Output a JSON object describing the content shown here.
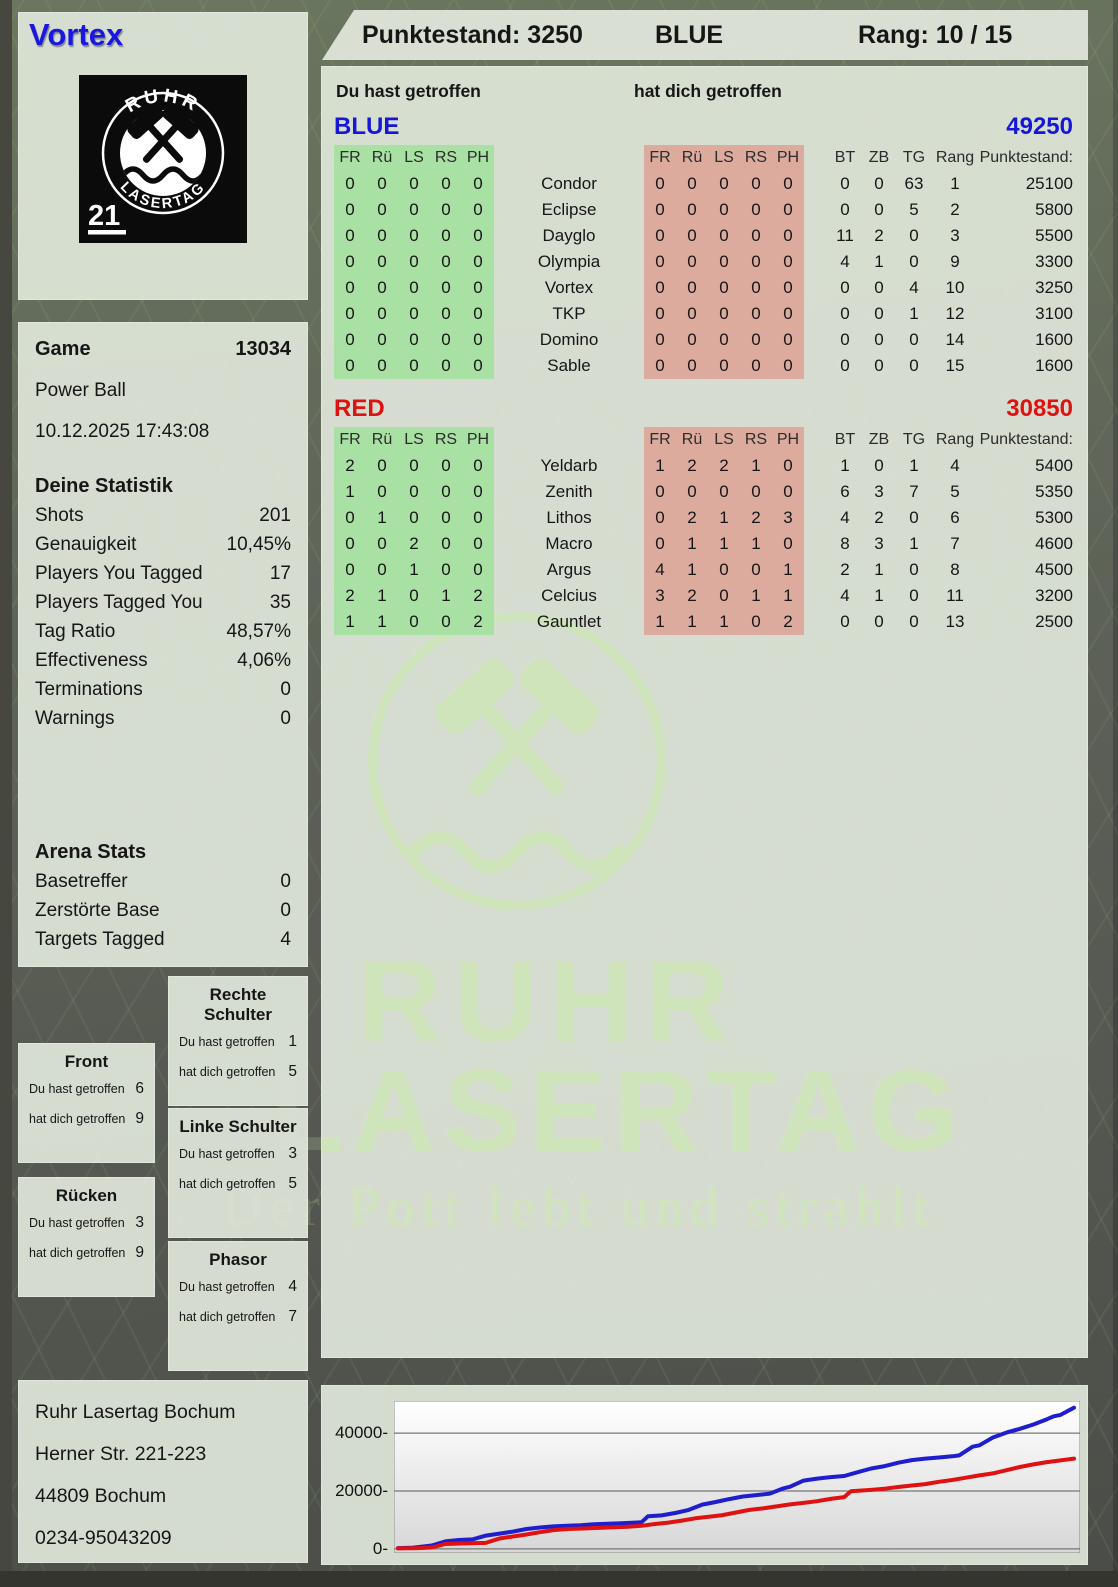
{
  "header": {
    "player_name": "Vortex",
    "score_label": "Punktestand: 3250",
    "team_label": "BLUE",
    "rank_label": "Rang: 10 / 15"
  },
  "logo": {
    "arc_top": "RUHR",
    "arc_bottom": "LASERTAG",
    "badge": "21"
  },
  "game": {
    "label": "Game",
    "number": "13034",
    "mode": "Power Ball",
    "datetime": "10.12.2025 17:43:08"
  },
  "stats": {
    "heading": "Deine Statistik",
    "rows": [
      {
        "label": "Shots",
        "value": "201"
      },
      {
        "label": "Genauigkeit",
        "value": "10,45%"
      },
      {
        "label": "Players You Tagged",
        "value": "17"
      },
      {
        "label": "Players Tagged You",
        "value": "35"
      },
      {
        "label": "Tag Ratio",
        "value": "48,57%"
      },
      {
        "label": "Effectiveness",
        "value": "4,06%"
      },
      {
        "label": "Terminations",
        "value": "0"
      },
      {
        "label": "Warnings",
        "value": "0"
      }
    ]
  },
  "arena": {
    "heading": "Arena Stats",
    "rows": [
      {
        "label": "Basetreffer",
        "value": "0"
      },
      {
        "label": "Zerstörte Base",
        "value": "0"
      },
      {
        "label": "Targets Tagged",
        "value": "4"
      }
    ]
  },
  "labels": {
    "you_hit": "Du hast getroffen",
    "got_hit": "hat dich getroffen"
  },
  "scoreboard": {
    "col_headers": [
      "FR",
      "Rü",
      "LS",
      "RS",
      "PH"
    ],
    "meta_headers": [
      "BT",
      "ZB",
      "TG",
      "Rang"
    ],
    "punkte_header": "Punktestand:",
    "teams": [
      {
        "name": "BLUE",
        "total": "49250",
        "color": "#1616d6",
        "players": [
          {
            "name": "Condor",
            "you": [
              0,
              0,
              0,
              0,
              0
            ],
            "them": [
              0,
              0,
              0,
              0,
              0
            ],
            "bt": "0",
            "zb": "0",
            "tg": "63",
            "rang": "1",
            "punkte": "25100"
          },
          {
            "name": "Eclipse",
            "you": [
              0,
              0,
              0,
              0,
              0
            ],
            "them": [
              0,
              0,
              0,
              0,
              0
            ],
            "bt": "0",
            "zb": "0",
            "tg": "5",
            "rang": "2",
            "punkte": "5800"
          },
          {
            "name": "Dayglo",
            "you": [
              0,
              0,
              0,
              0,
              0
            ],
            "them": [
              0,
              0,
              0,
              0,
              0
            ],
            "bt": "11",
            "zb": "2",
            "tg": "0",
            "rang": "3",
            "punkte": "5500"
          },
          {
            "name": "Olympia",
            "you": [
              0,
              0,
              0,
              0,
              0
            ],
            "them": [
              0,
              0,
              0,
              0,
              0
            ],
            "bt": "4",
            "zb": "1",
            "tg": "0",
            "rang": "9",
            "punkte": "3300"
          },
          {
            "name": "Vortex",
            "you": [
              0,
              0,
              0,
              0,
              0
            ],
            "them": [
              0,
              0,
              0,
              0,
              0
            ],
            "bt": "0",
            "zb": "0",
            "tg": "4",
            "rang": "10",
            "punkte": "3250"
          },
          {
            "name": "TKP",
            "you": [
              0,
              0,
              0,
              0,
              0
            ],
            "them": [
              0,
              0,
              0,
              0,
              0
            ],
            "bt": "0",
            "zb": "0",
            "tg": "1",
            "rang": "12",
            "punkte": "3100"
          },
          {
            "name": "Domino",
            "you": [
              0,
              0,
              0,
              0,
              0
            ],
            "them": [
              0,
              0,
              0,
              0,
              0
            ],
            "bt": "0",
            "zb": "0",
            "tg": "0",
            "rang": "14",
            "punkte": "1600"
          },
          {
            "name": "Sable",
            "you": [
              0,
              0,
              0,
              0,
              0
            ],
            "them": [
              0,
              0,
              0,
              0,
              0
            ],
            "bt": "0",
            "zb": "0",
            "tg": "0",
            "rang": "15",
            "punkte": "1600"
          }
        ]
      },
      {
        "name": "RED",
        "total": "30850",
        "color": "#de1211",
        "players": [
          {
            "name": "Yeldarb",
            "you": [
              2,
              0,
              0,
              0,
              0
            ],
            "them": [
              1,
              2,
              2,
              1,
              0
            ],
            "bt": "1",
            "zb": "0",
            "tg": "1",
            "rang": "4",
            "punkte": "5400"
          },
          {
            "name": "Zenith",
            "you": [
              1,
              0,
              0,
              0,
              0
            ],
            "them": [
              0,
              0,
              0,
              0,
              0
            ],
            "bt": "6",
            "zb": "3",
            "tg": "7",
            "rang": "5",
            "punkte": "5350"
          },
          {
            "name": "Lithos",
            "you": [
              0,
              1,
              0,
              0,
              0
            ],
            "them": [
              0,
              2,
              1,
              2,
              3
            ],
            "bt": "4",
            "zb": "2",
            "tg": "0",
            "rang": "6",
            "punkte": "5300"
          },
          {
            "name": "Macro",
            "you": [
              0,
              0,
              2,
              0,
              0
            ],
            "them": [
              0,
              1,
              1,
              1,
              0
            ],
            "bt": "8",
            "zb": "3",
            "tg": "1",
            "rang": "7",
            "punkte": "4600"
          },
          {
            "name": "Argus",
            "you": [
              0,
              0,
              1,
              0,
              0
            ],
            "them": [
              4,
              1,
              0,
              0,
              1
            ],
            "bt": "2",
            "zb": "1",
            "tg": "0",
            "rang": "8",
            "punkte": "4500"
          },
          {
            "name": "Celcius",
            "you": [
              2,
              1,
              0,
              1,
              2
            ],
            "them": [
              3,
              2,
              0,
              1,
              1
            ],
            "bt": "4",
            "zb": "1",
            "tg": "0",
            "rang": "11",
            "punkte": "3200"
          },
          {
            "name": "Gauntlet",
            "you": [
              1,
              1,
              0,
              0,
              2
            ],
            "them": [
              1,
              1,
              1,
              0,
              2
            ],
            "bt": "0",
            "zb": "0",
            "tg": "0",
            "rang": "13",
            "punkte": "2500"
          }
        ]
      }
    ]
  },
  "hit_zones": {
    "front": {
      "title": "Front",
      "you": "6",
      "them": "9"
    },
    "ruecken": {
      "title": "Rücken",
      "you": "3",
      "them": "9"
    },
    "rechte_schulter": {
      "title": "Rechte Schulter",
      "you": "1",
      "them": "5"
    },
    "linke_schulter": {
      "title": "Linke Schulter",
      "you": "3",
      "them": "5"
    },
    "phasor": {
      "title": "Phasor",
      "you": "4",
      "them": "7"
    }
  },
  "watermark": {
    "line1": "RUHR",
    "line2": "LASERTAG",
    "tagline": "Der Pott lebt und strahlt"
  },
  "address": {
    "lines": [
      "Ruhr Lasertag Bochum",
      "Herner Str. 221-223",
      "44809 Bochum",
      "0234-95043209"
    ]
  },
  "colors": {
    "blue_team": "#1616d6",
    "red_team": "#de1211",
    "green_cell": "#a9e0a3",
    "red_cell": "#dcab9e",
    "panel": "#dfe6d9",
    "chart_blue": "#1e1ecf",
    "chart_red": "#e01111"
  },
  "chart_data": {
    "type": "line",
    "title": "",
    "xlabel": "",
    "ylabel": "",
    "grid": true,
    "legend": "none",
    "ylim": [
      -1400,
      51100
    ],
    "yticks": [
      0,
      20000,
      40000
    ],
    "ytick_labels": [
      "0-",
      "20000-",
      "40000-"
    ],
    "series": [
      {
        "name": "BLUE",
        "color": "#1e1ecf",
        "points": [
          [
            0,
            300
          ],
          [
            0.02,
            400
          ],
          [
            0.05,
            1200
          ],
          [
            0.07,
            2600
          ],
          [
            0.09,
            3100
          ],
          [
            0.11,
            3300
          ],
          [
            0.13,
            4600
          ],
          [
            0.15,
            5300
          ],
          [
            0.17,
            6000
          ],
          [
            0.19,
            6900
          ],
          [
            0.21,
            7400
          ],
          [
            0.23,
            7800
          ],
          [
            0.25,
            8000
          ],
          [
            0.27,
            8200
          ],
          [
            0.29,
            8500
          ],
          [
            0.31,
            8700
          ],
          [
            0.33,
            8900
          ],
          [
            0.35,
            9100
          ],
          [
            0.36,
            9200
          ],
          [
            0.37,
            11300
          ],
          [
            0.39,
            11600
          ],
          [
            0.41,
            12400
          ],
          [
            0.43,
            13500
          ],
          [
            0.45,
            15300
          ],
          [
            0.47,
            16200
          ],
          [
            0.49,
            17200
          ],
          [
            0.51,
            18100
          ],
          [
            0.53,
            18600
          ],
          [
            0.55,
            19100
          ],
          [
            0.57,
            20900
          ],
          [
            0.58,
            21500
          ],
          [
            0.6,
            23600
          ],
          [
            0.62,
            24300
          ],
          [
            0.64,
            24800
          ],
          [
            0.66,
            25200
          ],
          [
            0.68,
            26500
          ],
          [
            0.7,
            27800
          ],
          [
            0.72,
            28600
          ],
          [
            0.74,
            29800
          ],
          [
            0.76,
            30700
          ],
          [
            0.78,
            31200
          ],
          [
            0.8,
            31600
          ],
          [
            0.82,
            32000
          ],
          [
            0.83,
            32300
          ],
          [
            0.85,
            35300
          ],
          [
            0.86,
            35800
          ],
          [
            0.88,
            38500
          ],
          [
            0.9,
            40200
          ],
          [
            0.92,
            41500
          ],
          [
            0.94,
            43000
          ],
          [
            0.96,
            44800
          ],
          [
            0.97,
            45800
          ],
          [
            0.98,
            46300
          ],
          [
            1,
            48800
          ]
        ]
      },
      {
        "name": "RED",
        "color": "#e01111",
        "points": [
          [
            0,
            200
          ],
          [
            0.03,
            300
          ],
          [
            0.05,
            500
          ],
          [
            0.07,
            1700
          ],
          [
            0.1,
            1900
          ],
          [
            0.13,
            2100
          ],
          [
            0.15,
            3600
          ],
          [
            0.17,
            4300
          ],
          [
            0.19,
            5000
          ],
          [
            0.21,
            5800
          ],
          [
            0.23,
            6500
          ],
          [
            0.25,
            6900
          ],
          [
            0.28,
            7100
          ],
          [
            0.31,
            7400
          ],
          [
            0.34,
            7700
          ],
          [
            0.36,
            8000
          ],
          [
            0.38,
            8600
          ],
          [
            0.4,
            9100
          ],
          [
            0.42,
            9800
          ],
          [
            0.44,
            10600
          ],
          [
            0.46,
            11100
          ],
          [
            0.48,
            11700
          ],
          [
            0.5,
            12600
          ],
          [
            0.52,
            13500
          ],
          [
            0.54,
            14000
          ],
          [
            0.56,
            14700
          ],
          [
            0.58,
            15400
          ],
          [
            0.6,
            15900
          ],
          [
            0.62,
            16500
          ],
          [
            0.64,
            17300
          ],
          [
            0.66,
            17900
          ],
          [
            0.67,
            19900
          ],
          [
            0.7,
            20400
          ],
          [
            0.72,
            20800
          ],
          [
            0.74,
            21400
          ],
          [
            0.76,
            21900
          ],
          [
            0.78,
            22400
          ],
          [
            0.8,
            23200
          ],
          [
            0.82,
            23800
          ],
          [
            0.84,
            24600
          ],
          [
            0.86,
            25400
          ],
          [
            0.88,
            26100
          ],
          [
            0.9,
            27200
          ],
          [
            0.92,
            28300
          ],
          [
            0.94,
            29200
          ],
          [
            0.96,
            30000
          ],
          [
            0.98,
            30600
          ],
          [
            1,
            31200
          ]
        ]
      }
    ]
  }
}
